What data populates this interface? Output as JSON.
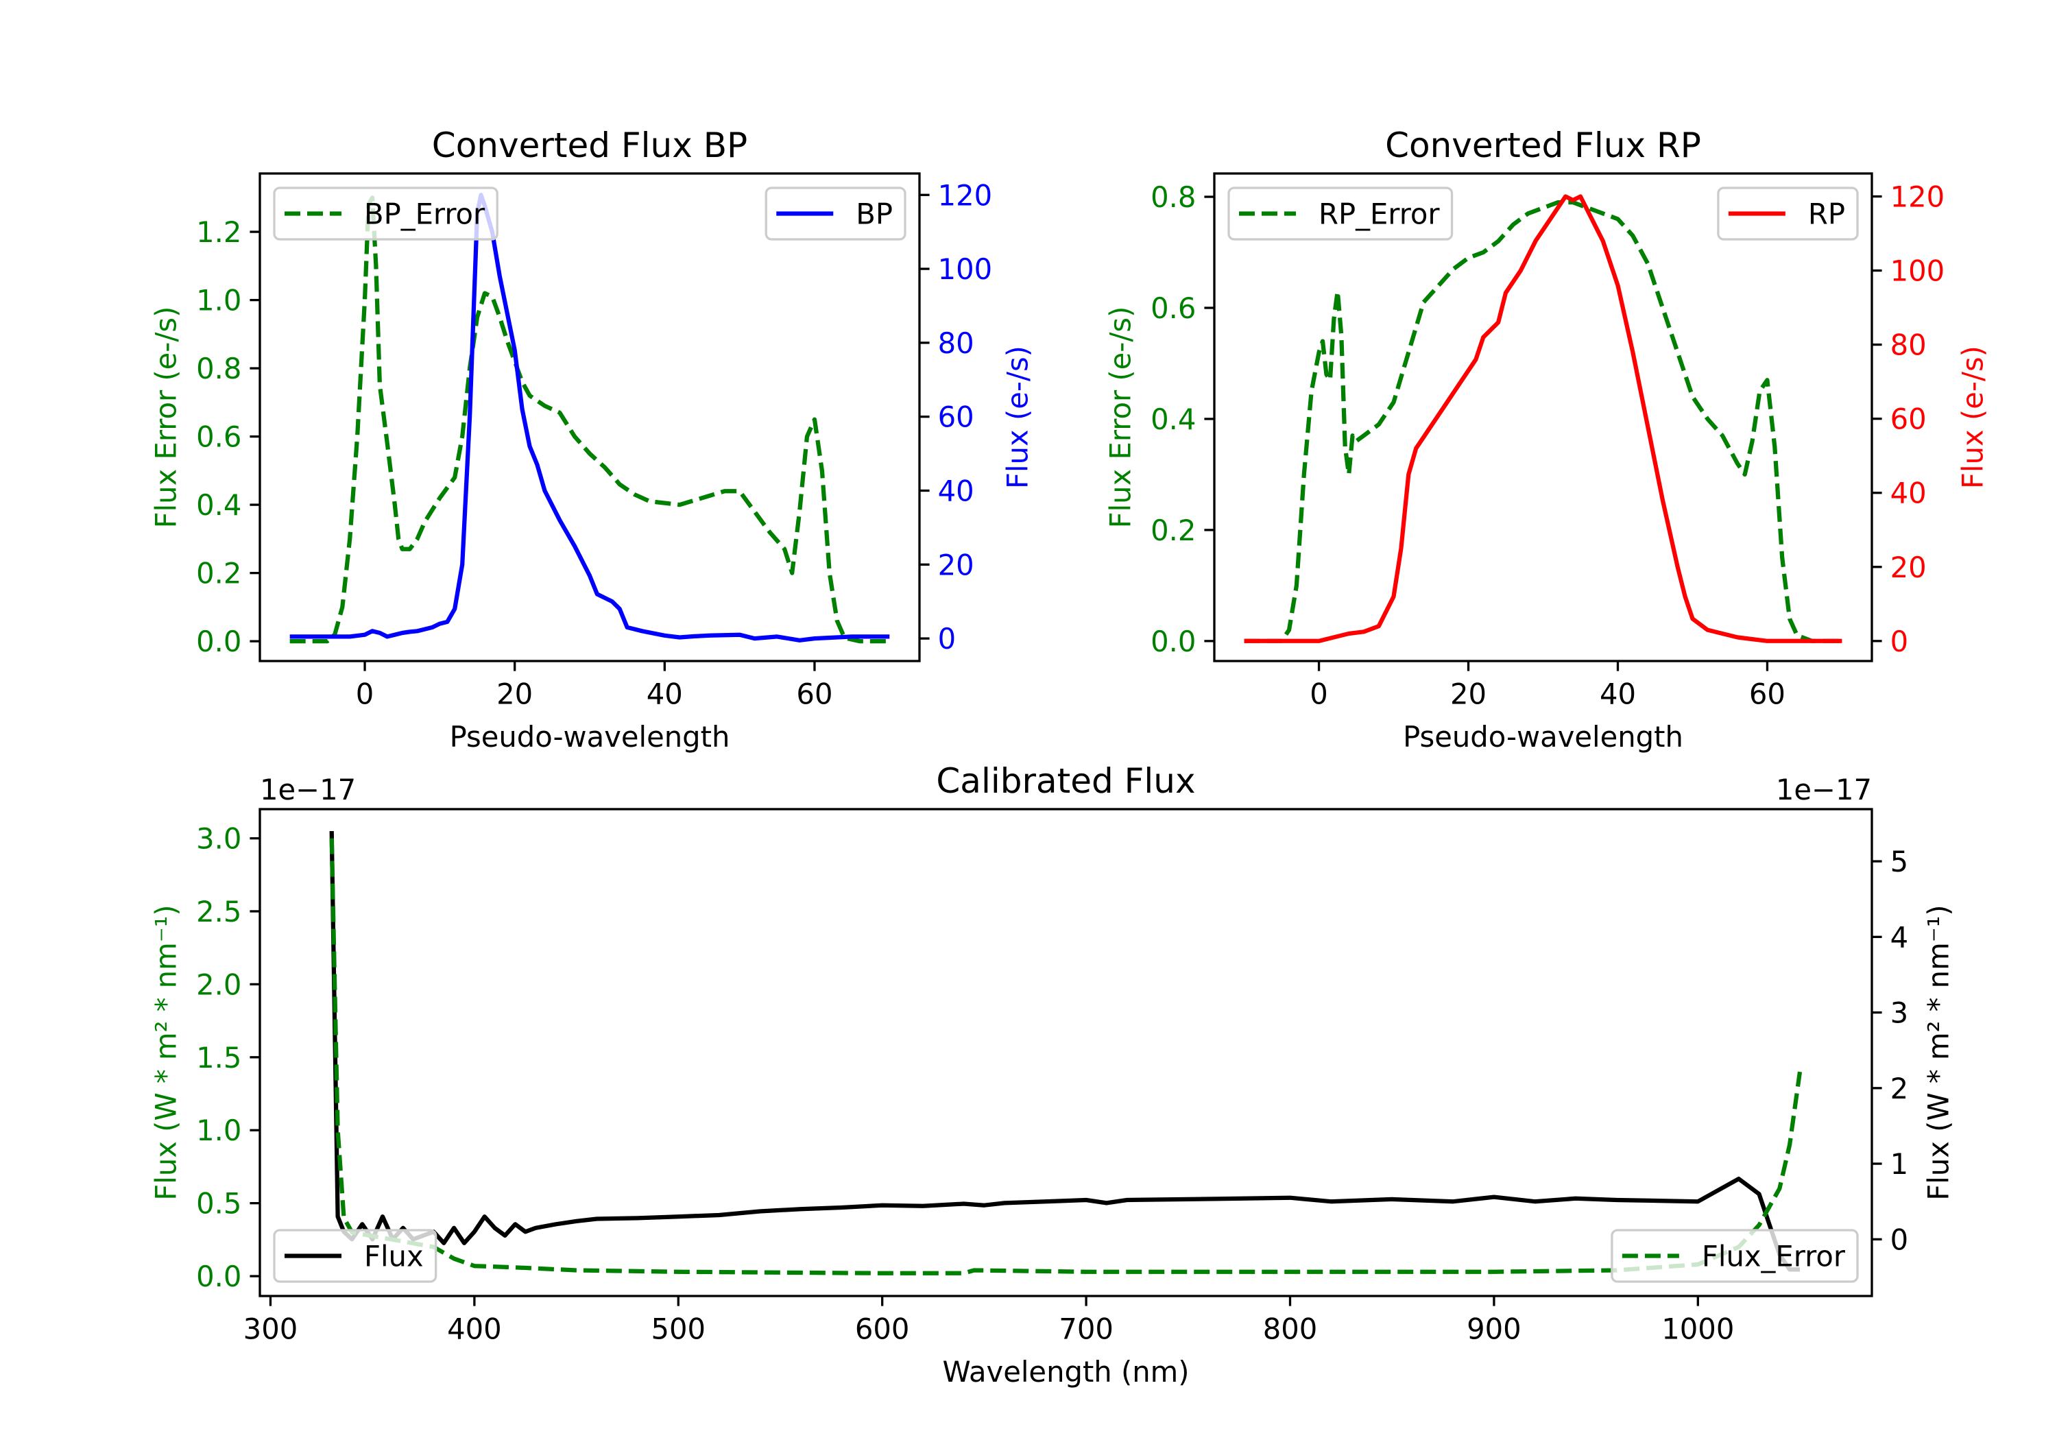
{
  "chart_data": [
    {
      "type": "line",
      "title": "Converted Flux BP",
      "xlabel": "Pseudo-wavelength",
      "ylabel_left": "Flux Error (e-/s)",
      "ylabel_right": "Flux (e-/s)",
      "xlim": [
        -14,
        74
      ],
      "ylim_left": [
        -0.058,
        1.371
      ],
      "ylim_right": [
        -6.1,
        125.8
      ],
      "xticks": [
        "0",
        "20",
        "40",
        "60"
      ],
      "yticks_left": [
        "0.0",
        "0.2",
        "0.4",
        "0.6",
        "0.8",
        "1.0",
        "1.2"
      ],
      "yticks_right": [
        "0",
        "20",
        "40",
        "60",
        "80",
        "100",
        "120"
      ],
      "left_color": "#008000",
      "right_color": "#0000ff",
      "offset_left": "",
      "offset_right": "",
      "series": [
        {
          "name": "BP_Error",
          "axis": "left",
          "style": "dashed",
          "color": "#008000",
          "legend": "upper left",
          "x": [
            -10,
            -5,
            -4,
            -3,
            -2,
            -1,
            0,
            0.5,
            1,
            1.5,
            2,
            3,
            4,
            4.5,
            5,
            6,
            7,
            8,
            10,
            12,
            13,
            14,
            15,
            16,
            17,
            18,
            19,
            20,
            21,
            22,
            24,
            26,
            28,
            30,
            32,
            34,
            36,
            38,
            42,
            45,
            48,
            50,
            52,
            54,
            56,
            57,
            58,
            59,
            60,
            61,
            62,
            63,
            64,
            66,
            70
          ],
          "y": [
            0,
            0,
            0.02,
            0.1,
            0.3,
            0.6,
            1.0,
            1.28,
            1.3,
            1.1,
            0.75,
            0.58,
            0.4,
            0.3,
            0.27,
            0.27,
            0.3,
            0.35,
            0.42,
            0.48,
            0.6,
            0.8,
            0.95,
            1.02,
            1.01,
            0.95,
            0.88,
            0.82,
            0.76,
            0.72,
            0.69,
            0.67,
            0.6,
            0.55,
            0.51,
            0.46,
            0.43,
            0.41,
            0.4,
            0.42,
            0.44,
            0.44,
            0.38,
            0.32,
            0.27,
            0.2,
            0.38,
            0.6,
            0.65,
            0.5,
            0.2,
            0.06,
            0.01,
            0,
            0
          ]
        },
        {
          "name": "BP",
          "axis": "right",
          "style": "solid",
          "color": "#0000ff",
          "legend": "upper right",
          "x": [
            -10,
            -2,
            0,
            1,
            2,
            3,
            4,
            5,
            6,
            7,
            8,
            9,
            10,
            11,
            12,
            13,
            14,
            15,
            15.5,
            16,
            17,
            18,
            20,
            21,
            22,
            23,
            24,
            26,
            28,
            30,
            31,
            33,
            34,
            35,
            37,
            40,
            42,
            44,
            46,
            50,
            52,
            55,
            58,
            60,
            65,
            70
          ],
          "y": [
            0.5,
            0.5,
            1,
            2,
            1.5,
            0.5,
            1,
            1.5,
            1.8,
            2,
            2.5,
            3,
            4,
            4.5,
            8,
            20,
            60,
            115,
            120,
            117,
            110,
            98,
            78,
            62,
            52,
            47,
            40,
            32,
            25,
            17,
            12,
            10,
            8,
            3,
            2,
            0.8,
            0.3,
            0.6,
            0.8,
            1,
            0,
            0.5,
            -0.5,
            0,
            0.5,
            0.5
          ]
        }
      ]
    },
    {
      "type": "line",
      "title": "Converted Flux RP",
      "xlabel": "Pseudo-wavelength",
      "ylabel_left": "Flux Error (e-/s)",
      "ylabel_right": "Flux (e-/s)",
      "xlim": [
        -14,
        74
      ],
      "ylim_left": [
        -0.036,
        0.842
      ],
      "ylim_right": [
        -5.4,
        126.2
      ],
      "xticks": [
        "0",
        "20",
        "40",
        "60"
      ],
      "yticks_left": [
        "0.0",
        "0.2",
        "0.4",
        "0.6",
        "0.8"
      ],
      "yticks_right": [
        "0",
        "20",
        "40",
        "60",
        "80",
        "100",
        "120"
      ],
      "left_color": "#008000",
      "right_color": "#ff0000",
      "offset_left": "",
      "offset_right": "",
      "series": [
        {
          "name": "RP_Error",
          "axis": "left",
          "style": "dashed",
          "color": "#008000",
          "legend": "upper left",
          "x": [
            -10,
            -5,
            -4,
            -3,
            -2,
            -1,
            0,
            0.5,
            1,
            1.5,
            2,
            2.5,
            3,
            3.5,
            4,
            4.5,
            5,
            6,
            8,
            10,
            12,
            14,
            16,
            18,
            20,
            22,
            24,
            26,
            28,
            30,
            32,
            34,
            36,
            38,
            40,
            42,
            44,
            46,
            48,
            50,
            52,
            54,
            56,
            57,
            58,
            59,
            60,
            61,
            62,
            63,
            64,
            66,
            70
          ],
          "y": [
            0,
            0,
            0.02,
            0.1,
            0.3,
            0.45,
            0.52,
            0.54,
            0.48,
            0.47,
            0.58,
            0.63,
            0.55,
            0.35,
            0.3,
            0.37,
            0.36,
            0.37,
            0.39,
            0.43,
            0.52,
            0.61,
            0.64,
            0.67,
            0.69,
            0.7,
            0.72,
            0.75,
            0.77,
            0.78,
            0.79,
            0.79,
            0.78,
            0.77,
            0.76,
            0.73,
            0.68,
            0.6,
            0.52,
            0.44,
            0.4,
            0.37,
            0.32,
            0.3,
            0.36,
            0.45,
            0.47,
            0.35,
            0.15,
            0.04,
            0.01,
            0,
            0
          ]
        },
        {
          "name": "RP",
          "axis": "right",
          "style": "solid",
          "color": "#ff0000",
          "legend": "upper right",
          "x": [
            -10,
            0,
            2,
            4,
            6,
            8,
            10,
            11,
            12,
            13,
            15,
            17,
            19,
            21,
            22,
            24,
            25,
            27,
            29,
            31,
            33,
            34,
            35,
            36,
            38,
            40,
            42,
            44,
            46,
            48,
            49,
            50,
            52,
            54,
            56,
            58,
            60,
            70
          ],
          "y": [
            0,
            0,
            1,
            2,
            2.5,
            4,
            12,
            25,
            45,
            52,
            58,
            64,
            70,
            76,
            82,
            86,
            94,
            100,
            108,
            114,
            120,
            119,
            120,
            116,
            108,
            96,
            78,
            58,
            38,
            20,
            12,
            6,
            3,
            2,
            1,
            0.5,
            0,
            0
          ]
        }
      ]
    },
    {
      "type": "line",
      "title": "Calibrated Flux",
      "xlabel": "Wavelength (nm)",
      "ylabel_left": "Flux (W * m² * nm⁻¹)",
      "ylabel_right": "Flux (W * m² * nm⁻¹)",
      "xlim": [
        294.8,
        1085.3
      ],
      "ylim_left": [
        -0.136,
        3.2
      ],
      "ylim_right": [
        -0.75,
        5.69
      ],
      "xticks": [
        "300",
        "400",
        "500",
        "600",
        "700",
        "800",
        "900",
        "1000"
      ],
      "yticks_left": [
        "0.0",
        "0.5",
        "1.0",
        "1.5",
        "2.0",
        "2.5",
        "3.0"
      ],
      "yticks_right": [
        "0",
        "1",
        "2",
        "3",
        "4",
        "5"
      ],
      "left_color": "#008000",
      "right_color": "#000000",
      "offset_left": "1e−17",
      "offset_right": "1e−17",
      "series": [
        {
          "name": "Flux",
          "axis": "right",
          "style": "solid",
          "color": "#000000",
          "legend": "lower left",
          "x": [
            330,
            333,
            336,
            340,
            345,
            350,
            355,
            360,
            365,
            370,
            380,
            385,
            390,
            395,
            400,
            405,
            410,
            415,
            420,
            425,
            430,
            440,
            450,
            460,
            480,
            500,
            520,
            540,
            560,
            580,
            600,
            620,
            640,
            650,
            660,
            680,
            700,
            710,
            720,
            750,
            800,
            820,
            850,
            880,
            900,
            920,
            940,
            960,
            1000,
            1020,
            1030,
            1040,
            1045,
            1050
          ],
          "y": [
            5.4,
            0.3,
            0.1,
            0,
            0.2,
            0,
            0.3,
            0,
            0.15,
            0,
            0.1,
            -0.05,
            0.15,
            -0.05,
            0.1,
            0.3,
            0.15,
            0.05,
            0.2,
            0.1,
            0.15,
            0.2,
            0.24,
            0.27,
            0.28,
            0.3,
            0.32,
            0.37,
            0.4,
            0.42,
            0.45,
            0.44,
            0.47,
            0.45,
            0.48,
            0.5,
            0.52,
            0.48,
            0.52,
            0.53,
            0.55,
            0.5,
            0.53,
            0.5,
            0.56,
            0.5,
            0.54,
            0.52,
            0.5,
            0.8,
            0.6,
            -0.2,
            -0.4,
            -0.4
          ]
        },
        {
          "name": "Flux_Error",
          "axis": "left",
          "style": "dashed",
          "color": "#008000",
          "legend": "lower right",
          "x": [
            330,
            333,
            336,
            340,
            360,
            380,
            390,
            400,
            420,
            450,
            500,
            600,
            640,
            645,
            700,
            800,
            900,
            960,
            1000,
            1020,
            1030,
            1040,
            1045,
            1050
          ],
          "y": [
            3.0,
            1.0,
            0.4,
            0.3,
            0.25,
            0.2,
            0.12,
            0.07,
            0.06,
            0.04,
            0.03,
            0.02,
            0.02,
            0.04,
            0.03,
            0.03,
            0.03,
            0.04,
            0.08,
            0.2,
            0.35,
            0.6,
            0.9,
            1.4
          ]
        }
      ]
    }
  ]
}
